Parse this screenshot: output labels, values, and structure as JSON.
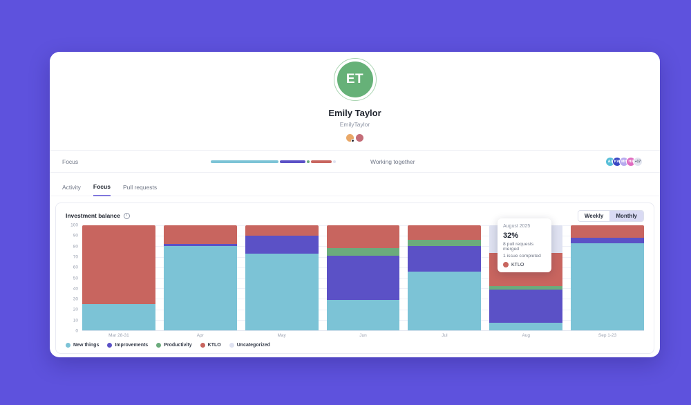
{
  "app": {
    "background_color": "#5e52dd"
  },
  "profile": {
    "initials": "ET",
    "avatar_color": "#66b178",
    "name": "Emily Taylor",
    "handle": "EmilyTaylor",
    "badges": [
      {
        "name": "badge-gold",
        "color": "#e9a868",
        "has_minidot": true
      },
      {
        "name": "badge-red",
        "color": "#c46d78",
        "has_minidot": false
      }
    ]
  },
  "summary": {
    "focus_label": "Focus",
    "working_together_label": "Working together",
    "focus_segments": [
      {
        "label": "New things",
        "color": "#7cc3d6",
        "pct": 53
      },
      {
        "label": "Improvements",
        "color": "#5b51c6",
        "pct": 20
      },
      {
        "label": "Productivity",
        "color": "#6bab7c",
        "pct": 2
      },
      {
        "label": "KTLO",
        "color": "#c8655f",
        "pct": 16
      },
      {
        "label": "Uncategorized",
        "color": "#dfe2f1",
        "pct": 2
      }
    ],
    "collaborators": [
      {
        "initials": "AJ",
        "color": "#58bfd8",
        "dark_text": false
      },
      {
        "initials": "KW",
        "color": "#3947c4",
        "dark_text": false
      },
      {
        "initials": "MH",
        "color": "#b7aaee",
        "dark_text": false
      },
      {
        "initials": "HX",
        "color": "#e06cc0",
        "dark_text": false
      },
      {
        "initials": "+17",
        "color": "#e2e5f0",
        "dark_text": true
      }
    ]
  },
  "tabs": [
    {
      "label": "Activity",
      "active": false
    },
    {
      "label": "Focus",
      "active": true
    },
    {
      "label": "Pull requests",
      "active": false
    }
  ],
  "panel": {
    "title": "Investment balance",
    "toggle": {
      "options": [
        "Weekly",
        "Monthly"
      ],
      "selected": "Monthly"
    }
  },
  "tooltip": {
    "title": "August 2025",
    "value": "32%",
    "lines": [
      "8 pull requests merged",
      "1 issue completed"
    ],
    "series": "KTLO",
    "series_color": "#c8655f"
  },
  "chart_data": {
    "type": "bar",
    "stacked": true,
    "title": "Investment balance",
    "categories": [
      "Mar 28-31",
      "Apr",
      "May",
      "Jun",
      "Jul",
      "Aug",
      "Sep 1-23"
    ],
    "series": [
      {
        "name": "New things",
        "color": "#7cc3d6",
        "values": [
          25,
          80,
          73,
          29,
          56,
          7,
          83
        ]
      },
      {
        "name": "Improvements",
        "color": "#5b51c6",
        "values": [
          0,
          2,
          17,
          42,
          24,
          32,
          5
        ]
      },
      {
        "name": "Productivity",
        "color": "#6bab7c",
        "values": [
          0,
          0,
          0,
          7,
          6,
          3,
          0
        ]
      },
      {
        "name": "KTLO",
        "color": "#c8655f",
        "values": [
          75,
          18,
          10,
          22,
          14,
          32,
          12
        ]
      },
      {
        "name": "Uncategorized",
        "color": "#dfe2f1",
        "values": [
          0,
          0,
          0,
          0,
          0,
          26,
          0
        ]
      }
    ],
    "xlabel": "",
    "ylabel": "",
    "ylim": [
      0,
      100
    ],
    "yticks": [
      100,
      90,
      80,
      70,
      60,
      50,
      40,
      30,
      20,
      10,
      0
    ],
    "grid": true,
    "legend_position": "bottom-left",
    "unit": "%"
  }
}
